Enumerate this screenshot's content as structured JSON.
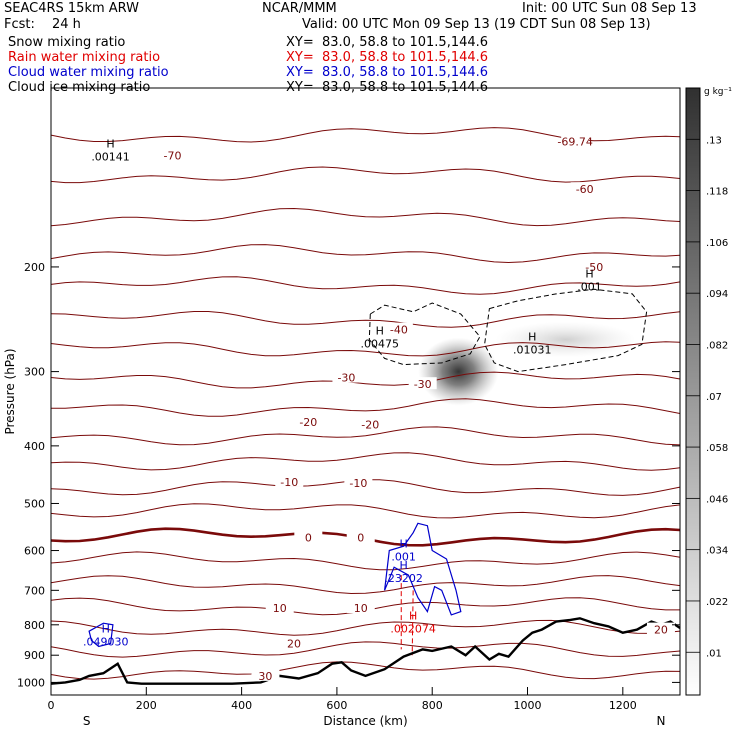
{
  "header": {
    "model": "SEAC4RS 15km ARW",
    "fcst_label": "Fcst:",
    "fcst_value": "24 h",
    "center": "NCAR/MMM",
    "init": "Init: 00 UTC Sun 08 Sep 13",
    "valid": "Valid: 00 UTC Mon 09 Sep 13 (19 CDT Sun 08 Sep 13)"
  },
  "fields": [
    {
      "name": "Snow mixing ratio",
      "xy": "XY=  83.0, 58.8 to 101.5,144.6",
      "color": "#000000"
    },
    {
      "name": "Rain water mixing ratio",
      "xy": "XY=  83.0, 58.8 to 101.5,144.6",
      "color": "#e00000"
    },
    {
      "name": "Cloud water mixing ratio",
      "xy": "XY=  83.0, 58.8 to 101.5,144.6",
      "color": "#0000cc"
    },
    {
      "name": "Cloud ice mixing ratio",
      "xy": "XY=  83.0, 58.8 to 101.5,144.6",
      "color": "#000000"
    }
  ],
  "chart_data": {
    "type": "cross-section",
    "xlabel": "Distance (km)",
    "ylabel": "Pressure (hPa)",
    "xlim": [
      0,
      1320
    ],
    "ylim": [
      100,
      1050
    ],
    "y_scale": "log",
    "x_ticks": [
      0,
      200,
      400,
      600,
      800,
      1000,
      1200
    ],
    "y_ticks": [
      200,
      300,
      400,
      500,
      600,
      700,
      800,
      900,
      1000
    ],
    "y_tick_labels": [
      "200",
      "300",
      "400",
      "500",
      "600",
      "700",
      "800",
      "900",
      "1000"
    ],
    "endpoint_labels": {
      "left": "S",
      "right": "N"
    },
    "colorbar": {
      "unit": "g kg⁻¹",
      "levels": [
        0.01,
        0.022,
        0.034,
        0.046,
        0.058,
        0.07,
        0.082,
        0.094,
        0.106,
        0.118,
        0.13
      ],
      "labels": [
        ".01",
        ".022",
        ".034",
        ".046",
        ".058",
        ".07",
        ".082",
        ".094",
        ".106",
        ".118",
        ".13"
      ]
    },
    "temperature_contours": {
      "color": "#7a0a0a",
      "zero_line_pressure": 570,
      "labels": [
        {
          "text": "-69.74",
          "x": 1100,
          "p": 123
        },
        {
          "text": "-70",
          "x": 255,
          "p": 130
        },
        {
          "text": "-60",
          "x": 1120,
          "p": 148
        },
        {
          "text": "-50",
          "x": 1140,
          "p": 200
        },
        {
          "text": "-40",
          "x": 730,
          "p": 255
        },
        {
          "text": "-30",
          "x": 620,
          "p": 307
        },
        {
          "text": "-30",
          "x": 780,
          "p": 315
        },
        {
          "text": "-20",
          "x": 540,
          "p": 365
        },
        {
          "text": "-20",
          "x": 670,
          "p": 368
        },
        {
          "text": "-10",
          "x": 500,
          "p": 460
        },
        {
          "text": "-10",
          "x": 645,
          "p": 462
        },
        {
          "text": "0",
          "x": 540,
          "p": 570
        },
        {
          "text": "0",
          "x": 650,
          "p": 570
        },
        {
          "text": "10",
          "x": 480,
          "p": 750
        },
        {
          "text": "10",
          "x": 650,
          "p": 750
        },
        {
          "text": "20",
          "x": 510,
          "p": 860
        },
        {
          "text": "20",
          "x": 1280,
          "p": 815
        },
        {
          "text": "30",
          "x": 450,
          "p": 975
        }
      ]
    },
    "maxima": [
      {
        "label": "H",
        "value": ".00141",
        "x": 125,
        "p": 127,
        "field": "Snow mixing ratio",
        "color": "#000000"
      },
      {
        "label": "H",
        "value": ".00475",
        "x": 690,
        "p": 262,
        "field": "Snow mixing ratio",
        "color": "#000000"
      },
      {
        "label": "H",
        "value": ".01031",
        "x": 1010,
        "p": 268,
        "field": "Cloud ice mixing ratio",
        "color": "#000000"
      },
      {
        "label": "H",
        "value": ".001",
        "x": 1130,
        "p": 210,
        "field": "Cloud ice mixing ratio",
        "color": "#000000"
      },
      {
        "label": "H",
        "value": ".001",
        "x": 740,
        "p": 598,
        "field": "Cloud water mixing ratio",
        "color": "#0000cc"
      },
      {
        "label": "H",
        "value": ".23202",
        "x": 740,
        "p": 650,
        "field": "Cloud water mixing ratio",
        "color": "#0000cc"
      },
      {
        "label": "H",
        "value": ".049030",
        "x": 115,
        "p": 830,
        "field": "Cloud water mixing ratio",
        "color": "#0000cc"
      },
      {
        "label": "H",
        "value": ".002074",
        "x": 760,
        "p": 790,
        "field": "Rain water mixing ratio",
        "color": "#e00000"
      }
    ],
    "terrain_pressure": {
      "x": [
        0,
        30,
        60,
        80,
        110,
        140,
        160,
        190,
        220,
        300,
        380,
        440,
        480,
        520,
        560,
        590,
        610,
        630,
        660,
        700,
        740,
        780,
        800,
        840,
        870,
        890,
        920,
        940,
        960,
        990,
        1010,
        1030,
        1060,
        1090,
        1110,
        1140,
        1170,
        1200,
        1230,
        1260,
        1280,
        1300,
        1320
      ],
      "p": [
        1005,
        1000,
        990,
        975,
        965,
        930,
        1000,
        1005,
        1005,
        1005,
        1005,
        1000,
        975,
        985,
        965,
        930,
        925,
        955,
        975,
        950,
        905,
        880,
        885,
        870,
        900,
        870,
        915,
        895,
        905,
        850,
        825,
        815,
        790,
        785,
        780,
        795,
        805,
        825,
        815,
        790,
        800,
        790,
        810
      ]
    }
  }
}
